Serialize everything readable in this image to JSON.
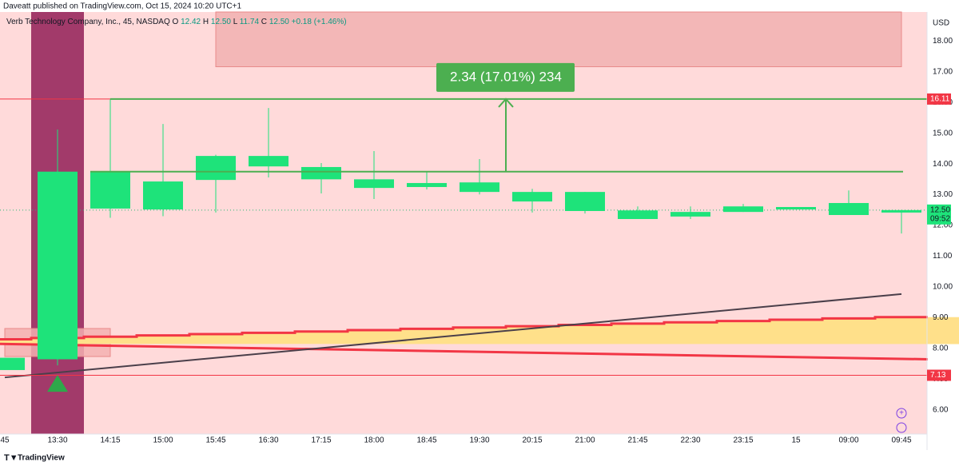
{
  "header": {
    "published": "Daveatt published on TradingView.com, Oct 15, 2024 10:20 UTC+1",
    "symbol": "Verb Technology Company, Inc., 45, NASDAQ",
    "ohlc": [
      {
        "key": "O",
        "value": "12.42"
      },
      {
        "key": "H",
        "value": "12.50"
      },
      {
        "key": "L",
        "value": "11.74"
      },
      {
        "key": "C",
        "value": "12.50"
      }
    ],
    "change": "+0.18 (+1.46%)"
  },
  "footer": {
    "brand": "TradingView"
  },
  "chart_data": {
    "type": "candlestick",
    "currency": "USD",
    "categories": [
      "45",
      "13:30",
      "14:15",
      "15:00",
      "15:45",
      "16:30",
      "17:15",
      "18:00",
      "18:45",
      "19:30",
      "20:15",
      "21:00",
      "21:45",
      "22:30",
      "23:15",
      "15",
      "09:00",
      "09:45"
    ],
    "open": [
      7.3,
      7.65,
      12.55,
      12.52,
      13.48,
      13.92,
      13.5,
      13.22,
      13.25,
      13.09,
      12.78,
      12.47,
      12.21,
      12.29,
      12.44,
      12.52,
      12.34,
      12.42
    ],
    "high": [
      7.7,
      15.12,
      16.1,
      15.3,
      14.3,
      15.82,
      14.03,
      14.42,
      13.77,
      14.16,
      13.19,
      13.09,
      12.62,
      12.62,
      12.7,
      12.6,
      13.14,
      12.5
    ],
    "low": [
      7.3,
      7.45,
      12.25,
      12.3,
      12.42,
      13.56,
      13.04,
      12.86,
      13.17,
      13.01,
      12.42,
      12.39,
      12.21,
      12.21,
      12.44,
      12.52,
      12.34,
      11.74
    ],
    "close": [
      7.7,
      13.75,
      13.75,
      13.43,
      14.26,
      14.26,
      13.9,
      13.5,
      13.38,
      13.4,
      13.09,
      13.09,
      12.49,
      12.44,
      12.62,
      12.6,
      12.73,
      12.5
    ],
    "color": "#1ee37a",
    "ylim": [
      5.22,
      18.94
    ],
    "yticks": [
      {
        "value": 6,
        "label": "6.00"
      },
      {
        "value": 7,
        "label": "7.00"
      },
      {
        "value": 8,
        "label": "8.00"
      },
      {
        "value": 9,
        "label": "9.00"
      },
      {
        "value": 10,
        "label": "10.00"
      },
      {
        "value": 11,
        "label": "11.00"
      },
      {
        "value": 12,
        "label": "12.00"
      },
      {
        "value": 13,
        "label": "13.00"
      },
      {
        "value": 14,
        "label": "14.00"
      },
      {
        "value": 15,
        "label": "15.00"
      },
      {
        "value": 16,
        "label": "16.00"
      },
      {
        "value": 17,
        "label": "17.00"
      },
      {
        "value": 18,
        "label": "18.00"
      }
    ],
    "hlines": [
      {
        "value": 16.11,
        "label": "16.11",
        "color": "#f23645"
      },
      {
        "value": 7.13,
        "label": "7.13",
        "color": "#f23645"
      }
    ],
    "last_price": {
      "value": 12.5,
      "label": "12.50",
      "time": "09:52",
      "color": "#1ee37a"
    },
    "highlight_bar": 1,
    "zones": [
      {
        "low": 17.16,
        "high": 18.94,
        "from": 4,
        "to": 17
      },
      {
        "low": 7.74,
        "high": 8.65,
        "from": 0,
        "to": 2
      }
    ],
    "band": {
      "upper": [
        8.3,
        9.02
      ],
      "lower": [
        8.15,
        7.65
      ]
    },
    "trendline": [
      7.06,
      9.77
    ],
    "measure": {
      "label": "2.34 (17.01%) 234",
      "from": 13.75,
      "to": 16.11,
      "at": 9.5,
      "start": 2
    }
  }
}
